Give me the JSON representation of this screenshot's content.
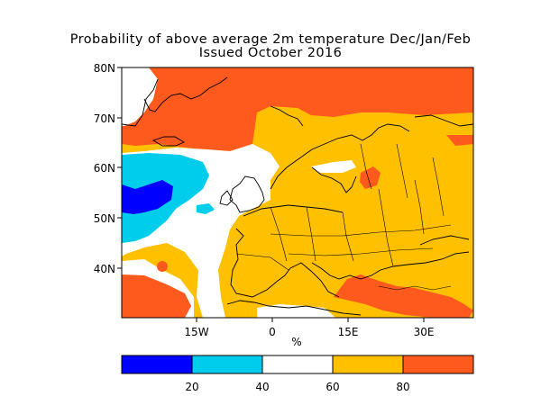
{
  "title": {
    "line1": "Probability of above average 2m temperature Dec/Jan/Feb",
    "line2": "Issued October 2016"
  },
  "map": {
    "lat_labels": [
      "80N",
      "70N",
      "60N",
      "50N",
      "40N"
    ],
    "lon_labels": [
      "15W",
      "0",
      "15E",
      "30E"
    ],
    "unit": "%"
  },
  "colorbar": {
    "labels": [
      "20",
      "40",
      "60",
      "80"
    ],
    "colors": [
      "#0000ff",
      "#00cceb",
      "#ffffff",
      "#ffc000",
      "#ff5a1e"
    ]
  },
  "colors": {
    "dark_blue": "#0000ff",
    "light_blue": "#00cceb",
    "white": "#ffffff",
    "yellow": "#ffc000",
    "orange": "#ff5a1e"
  }
}
